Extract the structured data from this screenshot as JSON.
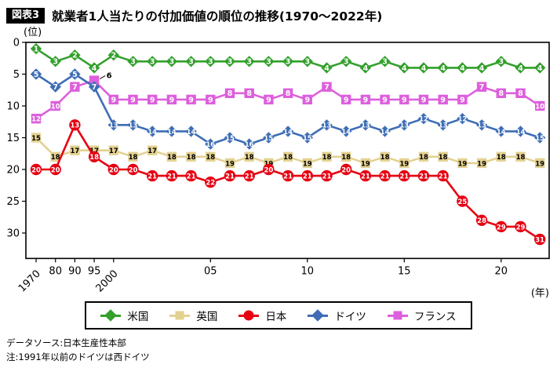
{
  "header": {
    "badge": "図表3",
    "title": "就業者1人当たりの付加価値の順位の推移(1970〜2022年)"
  },
  "chart_data": {
    "type": "line",
    "title": "就業者1人当たりの付加価値の順位の推移(1970〜2022年)",
    "y_unit": "(位)",
    "x_unit": "(年)",
    "y_axis": {
      "ticks": [
        0,
        5,
        10,
        15,
        20,
        25,
        30
      ],
      "inverted": true,
      "range": [
        0,
        34
      ]
    },
    "x_ticks": [
      {
        "index": 0,
        "label": "1970",
        "rotated": true
      },
      {
        "index": 1,
        "label": "80"
      },
      {
        "index": 2,
        "label": "90"
      },
      {
        "index": 3,
        "label": "95"
      },
      {
        "index": 4,
        "label": "2000",
        "rotated": true
      },
      {
        "index": 9,
        "label": "05"
      },
      {
        "index": 14,
        "label": "10"
      },
      {
        "index": 19,
        "label": "15"
      },
      {
        "index": 24,
        "label": "20"
      }
    ],
    "categories": [
      1970,
      1980,
      1990,
      1995,
      2000,
      2001,
      2002,
      2003,
      2004,
      2005,
      2006,
      2007,
      2008,
      2009,
      2010,
      2011,
      2012,
      2013,
      2014,
      2015,
      2016,
      2017,
      2018,
      2019,
      2020,
      2021,
      2022
    ],
    "series": [
      {
        "name": "米国",
        "marker": "diamond",
        "color": "#33a02c",
        "label_color": "#ffffff",
        "values": [
          1,
          3,
          2,
          4,
          2,
          3,
          3,
          3,
          3,
          3,
          3,
          3,
          3,
          3,
          3,
          4,
          3,
          4,
          3,
          4,
          4,
          4,
          4,
          4,
          3,
          4,
          4
        ]
      },
      {
        "name": "英国",
        "marker": "square",
        "color": "#e3d191",
        "label_color": "#000000",
        "values": [
          15,
          18,
          17,
          17,
          17,
          18,
          17,
          18,
          18,
          18,
          19,
          18,
          19,
          18,
          19,
          18,
          18,
          19,
          18,
          19,
          18,
          18,
          19,
          19,
          18,
          18,
          19
        ]
      },
      {
        "name": "日本",
        "marker": "circle",
        "color": "#e60012",
        "label_color": "#ffffff",
        "values": [
          20,
          20,
          13,
          18,
          20,
          20,
          21,
          21,
          21,
          22,
          21,
          21,
          20,
          21,
          21,
          21,
          20,
          21,
          21,
          21,
          21,
          21,
          25,
          28,
          29,
          29,
          31
        ]
      },
      {
        "name": "ドイツ",
        "marker": "diamond",
        "color": "#3e6db5",
        "label_color": "#ffffff",
        "values": [
          5,
          7,
          5,
          7,
          13,
          13,
          14,
          14,
          14,
          16,
          15,
          16,
          15,
          14,
          15,
          13,
          14,
          13,
          14,
          13,
          12,
          13,
          12,
          13,
          14,
          14,
          15
        ]
      },
      {
        "name": "フランス",
        "marker": "square",
        "color": "#dd5fdd",
        "label_color": "#ffffff",
        "values": [
          12,
          10,
          7,
          6,
          9,
          9,
          9,
          9,
          9,
          9,
          8,
          8,
          9,
          8,
          9,
          7,
          9,
          9,
          9,
          9,
          9,
          9,
          9,
          7,
          8,
          8,
          10
        ]
      }
    ],
    "draw_order": [
      1,
      4,
      3,
      0,
      2
    ],
    "annotations": [
      {
        "series": "フランス",
        "index": 3,
        "label": "6"
      }
    ],
    "legend_position": "bottom",
    "grid": false
  },
  "footer": {
    "source": "データソース:日本生産性本部",
    "note": "注:1991年以前のドイツは西ドイツ"
  }
}
